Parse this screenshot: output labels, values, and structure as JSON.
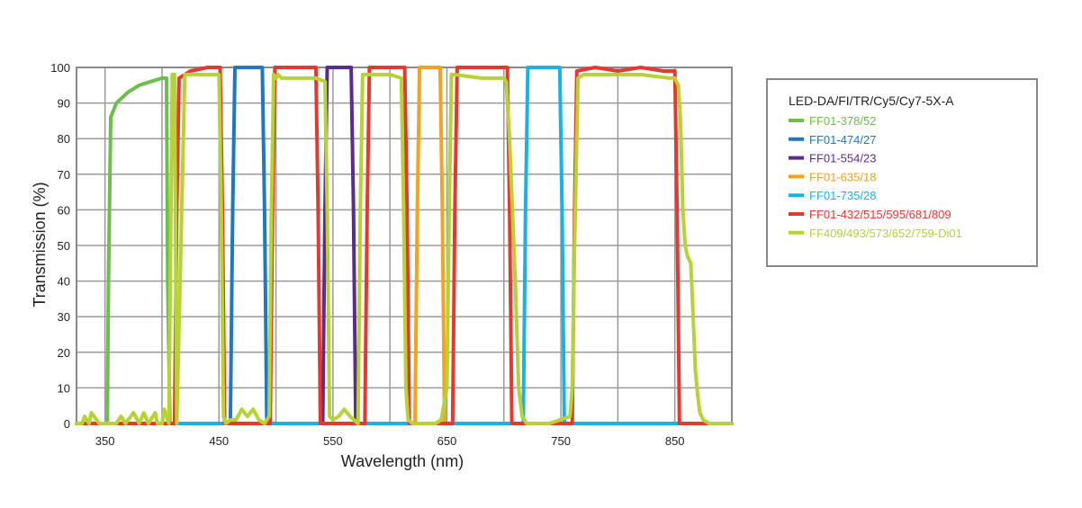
{
  "chart_data": {
    "type": "line",
    "title": "",
    "xlabel": "Wavelength (nm)",
    "ylabel": "Transmission (%)",
    "xlim": [
      325,
      900
    ],
    "ylim": [
      0,
      100
    ],
    "x_ticks": [
      350,
      450,
      550,
      650,
      750,
      850
    ],
    "y_ticks": [
      0,
      10,
      20,
      30,
      40,
      50,
      60,
      70,
      80,
      90,
      100
    ],
    "grid": true,
    "legend_title": "LED-DA/FI/TR/Cy5/Cy7-5X-A",
    "legend_position": "right",
    "series": [
      {
        "name": "FF01-378/52",
        "color": "#6cbf4a",
        "x": [
          325,
          352,
          353,
          355,
          360,
          370,
          380,
          390,
          400,
          404,
          405,
          407,
          900
        ],
        "y": [
          0,
          0,
          40,
          86,
          90,
          93,
          95,
          96,
          97,
          97,
          40,
          0,
          0
        ]
      },
      {
        "name": "FF01-474/27",
        "color": "#1f78c1",
        "x": [
          325,
          460,
          462,
          464,
          488,
          490,
          492,
          900
        ],
        "y": [
          0,
          0,
          60,
          100,
          100,
          60,
          0,
          0
        ]
      },
      {
        "name": "FF01-554/23",
        "color": "#5b2c8e",
        "x": [
          325,
          541,
          543,
          545,
          566,
          568,
          570,
          900
        ],
        "y": [
          0,
          0,
          60,
          100,
          100,
          60,
          0,
          0
        ]
      },
      {
        "name": "FF01-635/18",
        "color": "#f5a21c",
        "x": [
          325,
          622,
          624,
          626,
          644,
          646,
          648,
          900
        ],
        "y": [
          0,
          0,
          60,
          100,
          100,
          60,
          0,
          0
        ]
      },
      {
        "name": "FF01-735/28",
        "color": "#1bb1e6",
        "x": [
          325,
          717,
          719,
          721,
          749,
          751,
          753,
          900
        ],
        "y": [
          0,
          0,
          60,
          100,
          100,
          60,
          0,
          0
        ]
      },
      {
        "name": "FF01-432/515/595/681/809",
        "color": "#e8382e",
        "x": [
          325,
          411,
          413,
          415,
          425,
          440,
          451,
          453,
          455,
          495,
          497,
          499,
          510,
          525,
          535,
          537,
          539,
          578,
          580,
          582,
          595,
          610,
          613,
          615,
          617,
          655,
          657,
          659,
          670,
          690,
          703,
          705,
          707,
          760,
          762,
          764,
          780,
          800,
          820,
          840,
          850,
          852,
          854,
          900
        ],
        "y": [
          0,
          0,
          60,
          97,
          99,
          100,
          100,
          60,
          0,
          0,
          60,
          100,
          100,
          100,
          100,
          60,
          0,
          0,
          60,
          100,
          100,
          100,
          100,
          60,
          0,
          0,
          60,
          100,
          100,
          100,
          100,
          60,
          0,
          0,
          60,
          99,
          100,
          99,
          100,
          99,
          99,
          60,
          0,
          0
        ]
      },
      {
        "name": "FF409/493/573/652/759-Di01",
        "color": "#b5d334",
        "x": [
          325,
          330,
          332,
          336,
          338,
          345,
          350,
          355,
          360,
          364,
          368,
          375,
          380,
          384,
          388,
          394,
          396,
          400,
          402,
          406,
          409,
          411,
          413,
          420,
          440,
          450,
          452,
          454,
          456,
          460,
          465,
          470,
          475,
          480,
          485,
          490,
          494,
          496,
          498,
          500,
          502,
          505,
          520,
          535,
          543,
          545,
          547,
          550,
          555,
          560,
          565,
          572,
          574,
          576,
          580,
          590,
          600,
          610,
          612,
          614,
          616,
          620,
          625,
          630,
          635,
          640,
          645,
          650,
          652,
          654,
          656,
          680,
          700,
          702,
          705,
          710,
          713,
          716,
          720,
          740,
          758,
          760,
          762,
          765,
          770,
          800,
          820,
          845,
          850,
          853,
          855,
          857,
          859,
          861,
          864,
          866,
          868,
          870,
          872,
          875,
          880,
          900
        ],
        "y": [
          0,
          0,
          2,
          0,
          3,
          0,
          0,
          0,
          0,
          2,
          0,
          3,
          0,
          3,
          0,
          3,
          0,
          0,
          4,
          0,
          98,
          98,
          0,
          98,
          98,
          98,
          60,
          2,
          0,
          1,
          1,
          4,
          2,
          4,
          1,
          0,
          2,
          60,
          98,
          97,
          98,
          97,
          97,
          97,
          96,
          60,
          2,
          1,
          2,
          4,
          2,
          0,
          60,
          98,
          98,
          98,
          98,
          97,
          60,
          10,
          1,
          0,
          0,
          0,
          0,
          0,
          1,
          10,
          60,
          98,
          98,
          97,
          97,
          96,
          80,
          40,
          10,
          2,
          0,
          0,
          2,
          10,
          50,
          97,
          98,
          98,
          98,
          97,
          97,
          95,
          85,
          60,
          50,
          47,
          45,
          30,
          15,
          8,
          3,
          1,
          0,
          0
        ]
      }
    ]
  }
}
